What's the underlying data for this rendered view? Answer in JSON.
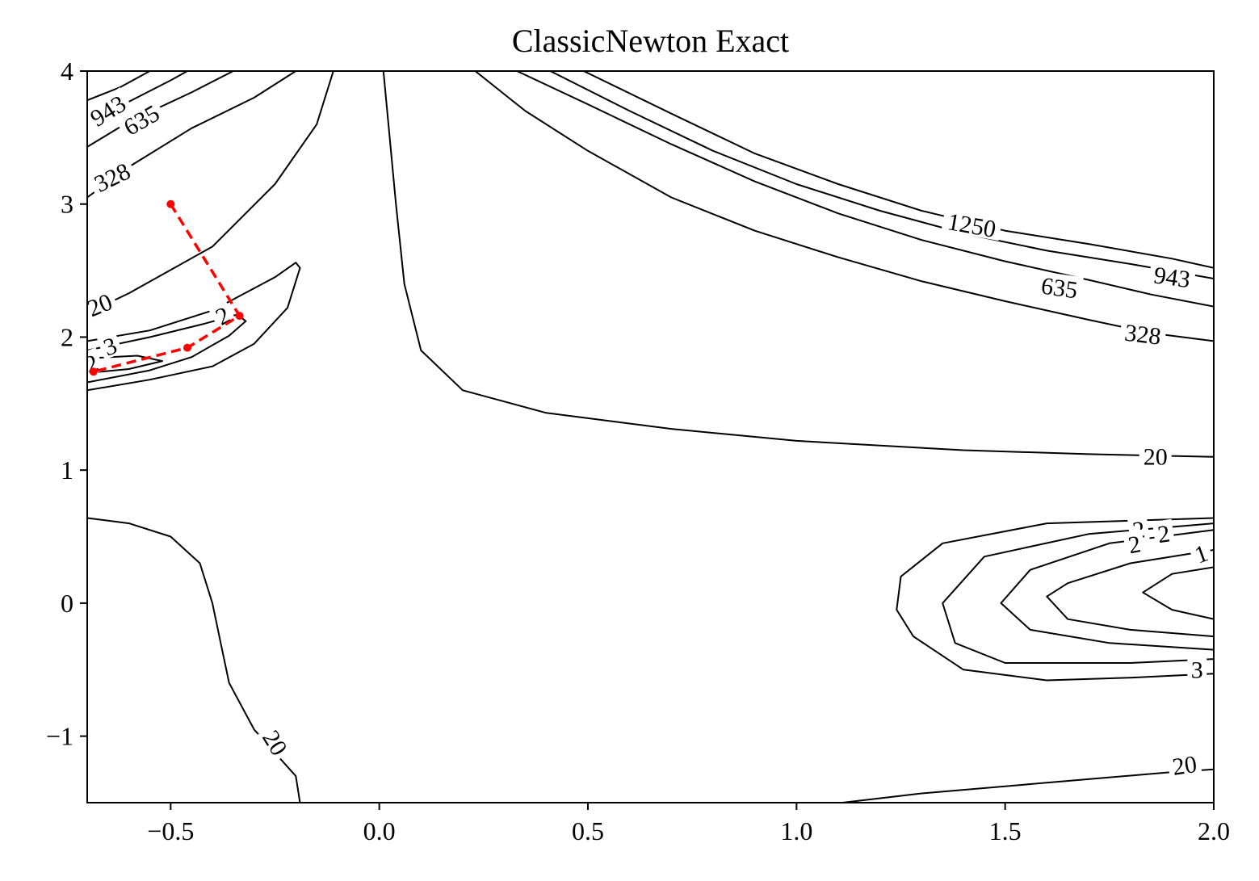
{
  "chart_data": {
    "type": "contour",
    "title": "ClassicNewton Exact",
    "xlabel": "",
    "ylabel": "",
    "xlim": [
      -0.7,
      2.0
    ],
    "ylim": [
      -1.5,
      4.0
    ],
    "x_ticks": [
      -0.5,
      0.0,
      0.5,
      1.0,
      1.5,
      2.0
    ],
    "x_tick_labels": [
      "−0.5",
      "0.0",
      "0.5",
      "1.0",
      "1.5",
      "2.0"
    ],
    "y_ticks": [
      -1,
      0,
      1,
      2,
      3,
      4
    ],
    "y_tick_labels": [
      "−1",
      "0",
      "1",
      "2",
      "3",
      "4"
    ],
    "grid": false,
    "contour_color": "#000000",
    "path_color": "#ff0000",
    "contours": [
      {
        "level": "20",
        "points": [
          [
            -0.7,
            0.64
          ],
          [
            -0.6,
            0.6
          ],
          [
            -0.5,
            0.5
          ],
          [
            -0.43,
            0.3
          ],
          [
            -0.4,
            0.0
          ],
          [
            -0.38,
            -0.3
          ],
          [
            -0.36,
            -0.6
          ],
          [
            -0.3,
            -0.95
          ],
          [
            -0.2,
            -1.3
          ],
          [
            -0.19,
            -1.5
          ]
        ]
      },
      {
        "level": "20",
        "points": [
          [
            -0.7,
            2.18
          ],
          [
            -0.6,
            2.33
          ],
          [
            -0.4,
            2.68
          ],
          [
            -0.25,
            3.15
          ],
          [
            -0.15,
            3.6
          ],
          [
            -0.11,
            4.0
          ]
        ]
      },
      {
        "level": "20",
        "points": [
          [
            0.01,
            4.0
          ],
          [
            0.04,
            3.0
          ],
          [
            0.06,
            2.4
          ],
          [
            0.1,
            1.9
          ],
          [
            0.2,
            1.6
          ],
          [
            0.4,
            1.43
          ],
          [
            0.7,
            1.31
          ],
          [
            1.0,
            1.22
          ],
          [
            1.4,
            1.15
          ],
          [
            1.7,
            1.12
          ],
          [
            2.0,
            1.1
          ]
        ]
      },
      {
        "level": "20",
        "points": [
          [
            1.11,
            -1.5
          ],
          [
            1.3,
            -1.43
          ],
          [
            1.6,
            -1.35
          ],
          [
            1.9,
            -1.27
          ],
          [
            2.0,
            -1.25
          ]
        ]
      },
      {
        "level": "328",
        "points": [
          [
            -0.7,
            3.05
          ],
          [
            -0.6,
            3.28
          ],
          [
            -0.45,
            3.57
          ],
          [
            -0.3,
            3.8
          ],
          [
            -0.2,
            4.0
          ]
        ]
      },
      {
        "level": "328",
        "points": [
          [
            0.23,
            4.0
          ],
          [
            0.35,
            3.7
          ],
          [
            0.5,
            3.4
          ],
          [
            0.7,
            3.05
          ],
          [
            0.9,
            2.8
          ],
          [
            1.1,
            2.6
          ],
          [
            1.3,
            2.42
          ],
          [
            1.5,
            2.27
          ],
          [
            1.7,
            2.13
          ],
          [
            1.85,
            2.03
          ],
          [
            2.0,
            1.97
          ]
        ]
      },
      {
        "level": "635",
        "points": [
          [
            -0.7,
            3.43
          ],
          [
            -0.6,
            3.62
          ],
          [
            -0.45,
            3.84
          ],
          [
            -0.35,
            4.0
          ]
        ]
      },
      {
        "level": "635",
        "points": [
          [
            0.33,
            4.0
          ],
          [
            0.5,
            3.75
          ],
          [
            0.7,
            3.45
          ],
          [
            0.9,
            3.17
          ],
          [
            1.1,
            2.93
          ],
          [
            1.3,
            2.73
          ],
          [
            1.5,
            2.57
          ],
          [
            1.7,
            2.43
          ],
          [
            1.85,
            2.32
          ],
          [
            2.0,
            2.23
          ]
        ]
      },
      {
        "level": "943",
        "points": [
          [
            -0.7,
            3.63
          ],
          [
            -0.6,
            3.77
          ],
          [
            -0.5,
            3.93
          ],
          [
            -0.46,
            4.0
          ]
        ]
      },
      {
        "level": "943",
        "points": [
          [
            0.41,
            4.0
          ],
          [
            0.6,
            3.7
          ],
          [
            0.8,
            3.4
          ],
          [
            1.0,
            3.15
          ],
          [
            1.2,
            2.95
          ],
          [
            1.4,
            2.78
          ],
          [
            1.6,
            2.65
          ],
          [
            1.8,
            2.55
          ],
          [
            2.0,
            2.44
          ]
        ]
      },
      {
        "level": "1250",
        "points": [
          [
            -0.7,
            3.78
          ],
          [
            -0.62,
            3.88
          ],
          [
            -0.55,
            4.0
          ]
        ]
      },
      {
        "level": "1250",
        "points": [
          [
            0.49,
            4.0
          ],
          [
            0.7,
            3.68
          ],
          [
            0.9,
            3.38
          ],
          [
            1.1,
            3.15
          ],
          [
            1.3,
            2.95
          ],
          [
            1.5,
            2.8
          ],
          [
            1.7,
            2.7
          ],
          [
            1.9,
            2.59
          ],
          [
            2.0,
            2.52
          ]
        ]
      },
      {
        "level": "2",
        "points": [
          [
            -0.7,
            1.6
          ],
          [
            -0.55,
            1.68
          ],
          [
            -0.4,
            1.78
          ],
          [
            -0.3,
            1.95
          ],
          [
            -0.22,
            2.22
          ],
          [
            -0.19,
            2.52
          ],
          [
            -0.2,
            2.56
          ],
          [
            -0.25,
            2.45
          ],
          [
            -0.4,
            2.2
          ],
          [
            -0.55,
            2.05
          ],
          [
            -0.7,
            1.97
          ]
        ]
      },
      {
        "level": "2",
        "points": [
          [
            -0.7,
            1.66
          ],
          [
            -0.55,
            1.75
          ],
          [
            -0.45,
            1.85
          ],
          [
            -0.36,
            2.01
          ],
          [
            -0.32,
            2.12
          ],
          [
            -0.34,
            2.17
          ],
          [
            -0.42,
            2.1
          ],
          [
            -0.55,
            2.0
          ],
          [
            -0.7,
            1.9
          ]
        ]
      },
      {
        "level": "3",
        "points": [
          [
            -0.7,
            1.73
          ],
          [
            -0.6,
            1.76
          ],
          [
            -0.52,
            1.82
          ],
          [
            -0.58,
            1.86
          ],
          [
            -0.7,
            1.84
          ]
        ]
      },
      {
        "level": "3",
        "points": [
          [
            2.0,
            0.64
          ],
          [
            1.6,
            0.6
          ],
          [
            1.35,
            0.45
          ],
          [
            1.25,
            0.2
          ],
          [
            1.24,
            -0.05
          ],
          [
            1.28,
            -0.25
          ],
          [
            1.4,
            -0.5
          ],
          [
            1.6,
            -0.58
          ],
          [
            1.8,
            -0.56
          ],
          [
            2.0,
            -0.53
          ]
        ]
      },
      {
        "level": "2",
        "points": [
          [
            2.0,
            0.6
          ],
          [
            1.7,
            0.52
          ],
          [
            1.45,
            0.35
          ],
          [
            1.35,
            0.0
          ],
          [
            1.38,
            -0.3
          ],
          [
            1.5,
            -0.45
          ],
          [
            1.8,
            -0.45
          ],
          [
            2.0,
            -0.42
          ]
        ]
      },
      {
        "level": "2",
        "points": [
          [
            2.0,
            0.55
          ],
          [
            1.75,
            0.45
          ],
          [
            1.56,
            0.25
          ],
          [
            1.49,
            0.0
          ],
          [
            1.56,
            -0.2
          ],
          [
            1.75,
            -0.3
          ],
          [
            2.0,
            -0.35
          ]
        ]
      },
      {
        "level": "1",
        "points": [
          [
            2.0,
            0.4
          ],
          [
            1.8,
            0.3
          ],
          [
            1.65,
            0.15
          ],
          [
            1.6,
            0.05
          ],
          [
            1.65,
            -0.12
          ],
          [
            1.8,
            -0.2
          ],
          [
            2.0,
            -0.25
          ]
        ]
      },
      {
        "level": "",
        "points": [
          [
            2.0,
            0.27
          ],
          [
            1.9,
            0.22
          ],
          [
            1.83,
            0.08
          ],
          [
            1.9,
            -0.05
          ],
          [
            2.0,
            -0.12
          ]
        ]
      }
    ],
    "contour_labels": [
      {
        "text": "943",
        "x": -0.65,
        "y": 3.7,
        "angle": -32
      },
      {
        "text": "635",
        "x": -0.57,
        "y": 3.63,
        "angle": -30
      },
      {
        "text": "328",
        "x": -0.64,
        "y": 3.2,
        "angle": -26
      },
      {
        "text": "20",
        "x": -0.67,
        "y": 2.24,
        "angle": -22
      },
      {
        "text": "2",
        "x": -0.375,
        "y": 2.16,
        "angle": -28
      },
      {
        "text": "2",
        "x": -0.69,
        "y": 1.8,
        "angle": -20
      },
      {
        "text": "3",
        "x": -0.645,
        "y": 1.93,
        "angle": -20
      },
      {
        "text": "1250",
        "x": 1.42,
        "y": 2.84,
        "angle": 10
      },
      {
        "text": "943",
        "x": 1.9,
        "y": 2.45,
        "angle": 8
      },
      {
        "text": "635",
        "x": 1.63,
        "y": 2.37,
        "angle": 8
      },
      {
        "text": "328",
        "x": 1.83,
        "y": 2.02,
        "angle": 7
      },
      {
        "text": "20",
        "x": 1.86,
        "y": 1.1,
        "angle": 0
      },
      {
        "text": "2",
        "x": 1.82,
        "y": 0.55,
        "angle": -8
      },
      {
        "text": "2",
        "x": 1.88,
        "y": 0.52,
        "angle": -8
      },
      {
        "text": "2",
        "x": 1.81,
        "y": 0.44,
        "angle": -10
      },
      {
        "text": "1",
        "x": 1.97,
        "y": 0.37,
        "angle": -20
      },
      {
        "text": "3",
        "x": 1.96,
        "y": -0.5,
        "angle": 0
      },
      {
        "text": "20",
        "x": 1.93,
        "y": -1.22,
        "angle": -8
      },
      {
        "text": "20",
        "x": -0.25,
        "y": -1.05,
        "angle": 58
      }
    ],
    "optimizer_path": {
      "points": [
        [
          -0.5,
          3.0
        ],
        [
          -0.335,
          2.16
        ],
        [
          -0.46,
          1.92
        ],
        [
          -0.685,
          1.74
        ]
      ]
    }
  }
}
